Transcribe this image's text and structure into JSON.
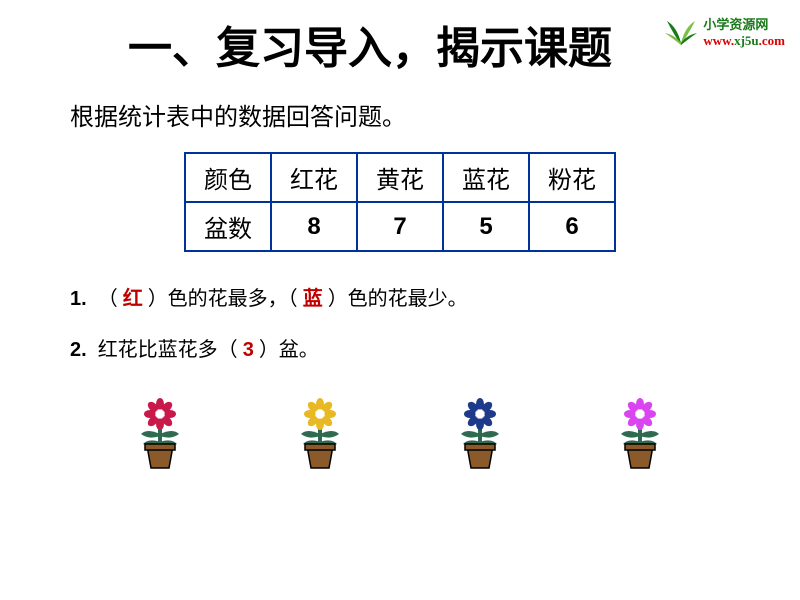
{
  "logo": {
    "text1": "小学资源网",
    "text2a": "www.",
    "text2b": "xj5u",
    "text2c": ".com",
    "leaf_colors": [
      "#1a7a1a",
      "#7ac142"
    ]
  },
  "title": "一、复习导入，揭示课题",
  "subtitle": "根据统计表中的数据回答问题。",
  "table": {
    "border_color": "#003399",
    "header_row": [
      "颜色",
      "红花",
      "黄花",
      "蓝花",
      "粉花"
    ],
    "data_row_label": "盆数",
    "data_row_values": [
      "8",
      "7",
      "5",
      "6"
    ]
  },
  "questions": {
    "q1": {
      "num": "1.",
      "part1": "（",
      "ans1": "红",
      "part2": "）色的花最多，（",
      "ans2": "蓝",
      "part3": "）色的花最少。"
    },
    "q2": {
      "num": "2.",
      "part1": "红花比蓝花多（",
      "ans": "3",
      "part2": "）盆。"
    }
  },
  "flowers": [
    {
      "name": "red-flower",
      "petal_color": "#c9184a",
      "leaf_color": "#2d6a4f",
      "pot_color": "#8b5a2b"
    },
    {
      "name": "yellow-flower",
      "petal_color": "#e8b923",
      "leaf_color": "#2d6a4f",
      "pot_color": "#8b5a2b"
    },
    {
      "name": "blue-flower",
      "petal_color": "#1e3a8a",
      "leaf_color": "#2d6a4f",
      "pot_color": "#8b5a2b"
    },
    {
      "name": "pink-flower",
      "petal_color": "#d946ef",
      "leaf_color": "#2d6a4f",
      "pot_color": "#8b5a2b"
    }
  ]
}
